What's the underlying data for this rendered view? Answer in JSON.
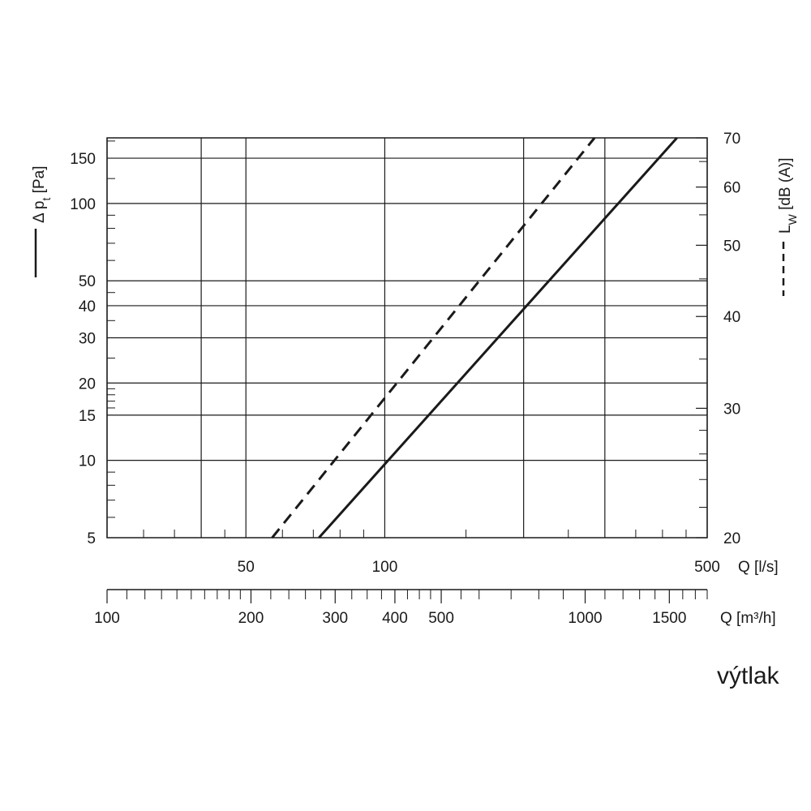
{
  "caption": "výtlak",
  "chart_data": {
    "type": "line",
    "x_scale": "log",
    "x_label": "Q [l/s]",
    "x_range": [
      25,
      500
    ],
    "x_ticks": [
      {
        "value": 50,
        "label": "50"
      },
      {
        "value": 100,
        "label": "100"
      },
      {
        "value": 500,
        "label": "500"
      }
    ],
    "x_grid": [
      25,
      40,
      50,
      100,
      200,
      300,
      500
    ],
    "x2_label": "Q [m³/h]",
    "x2_range": [
      100,
      1800
    ],
    "x2_ticks": [
      {
        "value": 100,
        "label": "100"
      },
      {
        "value": 200,
        "label": "200"
      },
      {
        "value": 300,
        "label": "300"
      },
      {
        "value": 400,
        "label": "400"
      },
      {
        "value": 500,
        "label": "500"
      },
      {
        "value": 1000,
        "label": "1000"
      },
      {
        "value": 1500,
        "label": "1500"
      }
    ],
    "y_scale": "log",
    "y_label_base": "Δ p",
    "y_label_sub": "t",
    "y_label_unit": " [Pa]",
    "y_range": [
      5,
      180
    ],
    "y_ticks": [
      {
        "value": 5,
        "label": "5"
      },
      {
        "value": 10,
        "label": "10"
      },
      {
        "value": 15,
        "label": "15"
      },
      {
        "value": 20,
        "label": "20"
      },
      {
        "value": 30,
        "label": "30"
      },
      {
        "value": 40,
        "label": "40"
      },
      {
        "value": 50,
        "label": "50"
      },
      {
        "value": 100,
        "label": "100"
      },
      {
        "value": 150,
        "label": "150"
      }
    ],
    "y_grid": [
      10,
      15,
      20,
      30,
      40,
      50,
      100,
      150
    ],
    "y2_label_base": "L",
    "y2_label_sub": "W",
    "y2_label_unit": " [dB (A)]",
    "y2_range": [
      20,
      70
    ],
    "y2_ticks": [
      {
        "value": 20,
        "label": "20"
      },
      {
        "value": 30,
        "label": "30"
      },
      {
        "value": 40,
        "label": "40"
      },
      {
        "value": 50,
        "label": "50"
      },
      {
        "value": 60,
        "label": "60"
      },
      {
        "value": 70,
        "label": "70"
      }
    ],
    "series": [
      {
        "style": "solid",
        "axis": "left",
        "x": [
          72,
          430
        ],
        "y": [
          5,
          180
        ]
      },
      {
        "style": "dashed",
        "axis": "right",
        "x": [
          57,
          285
        ],
        "y": [
          20,
          70
        ]
      }
    ],
    "grid": true
  }
}
